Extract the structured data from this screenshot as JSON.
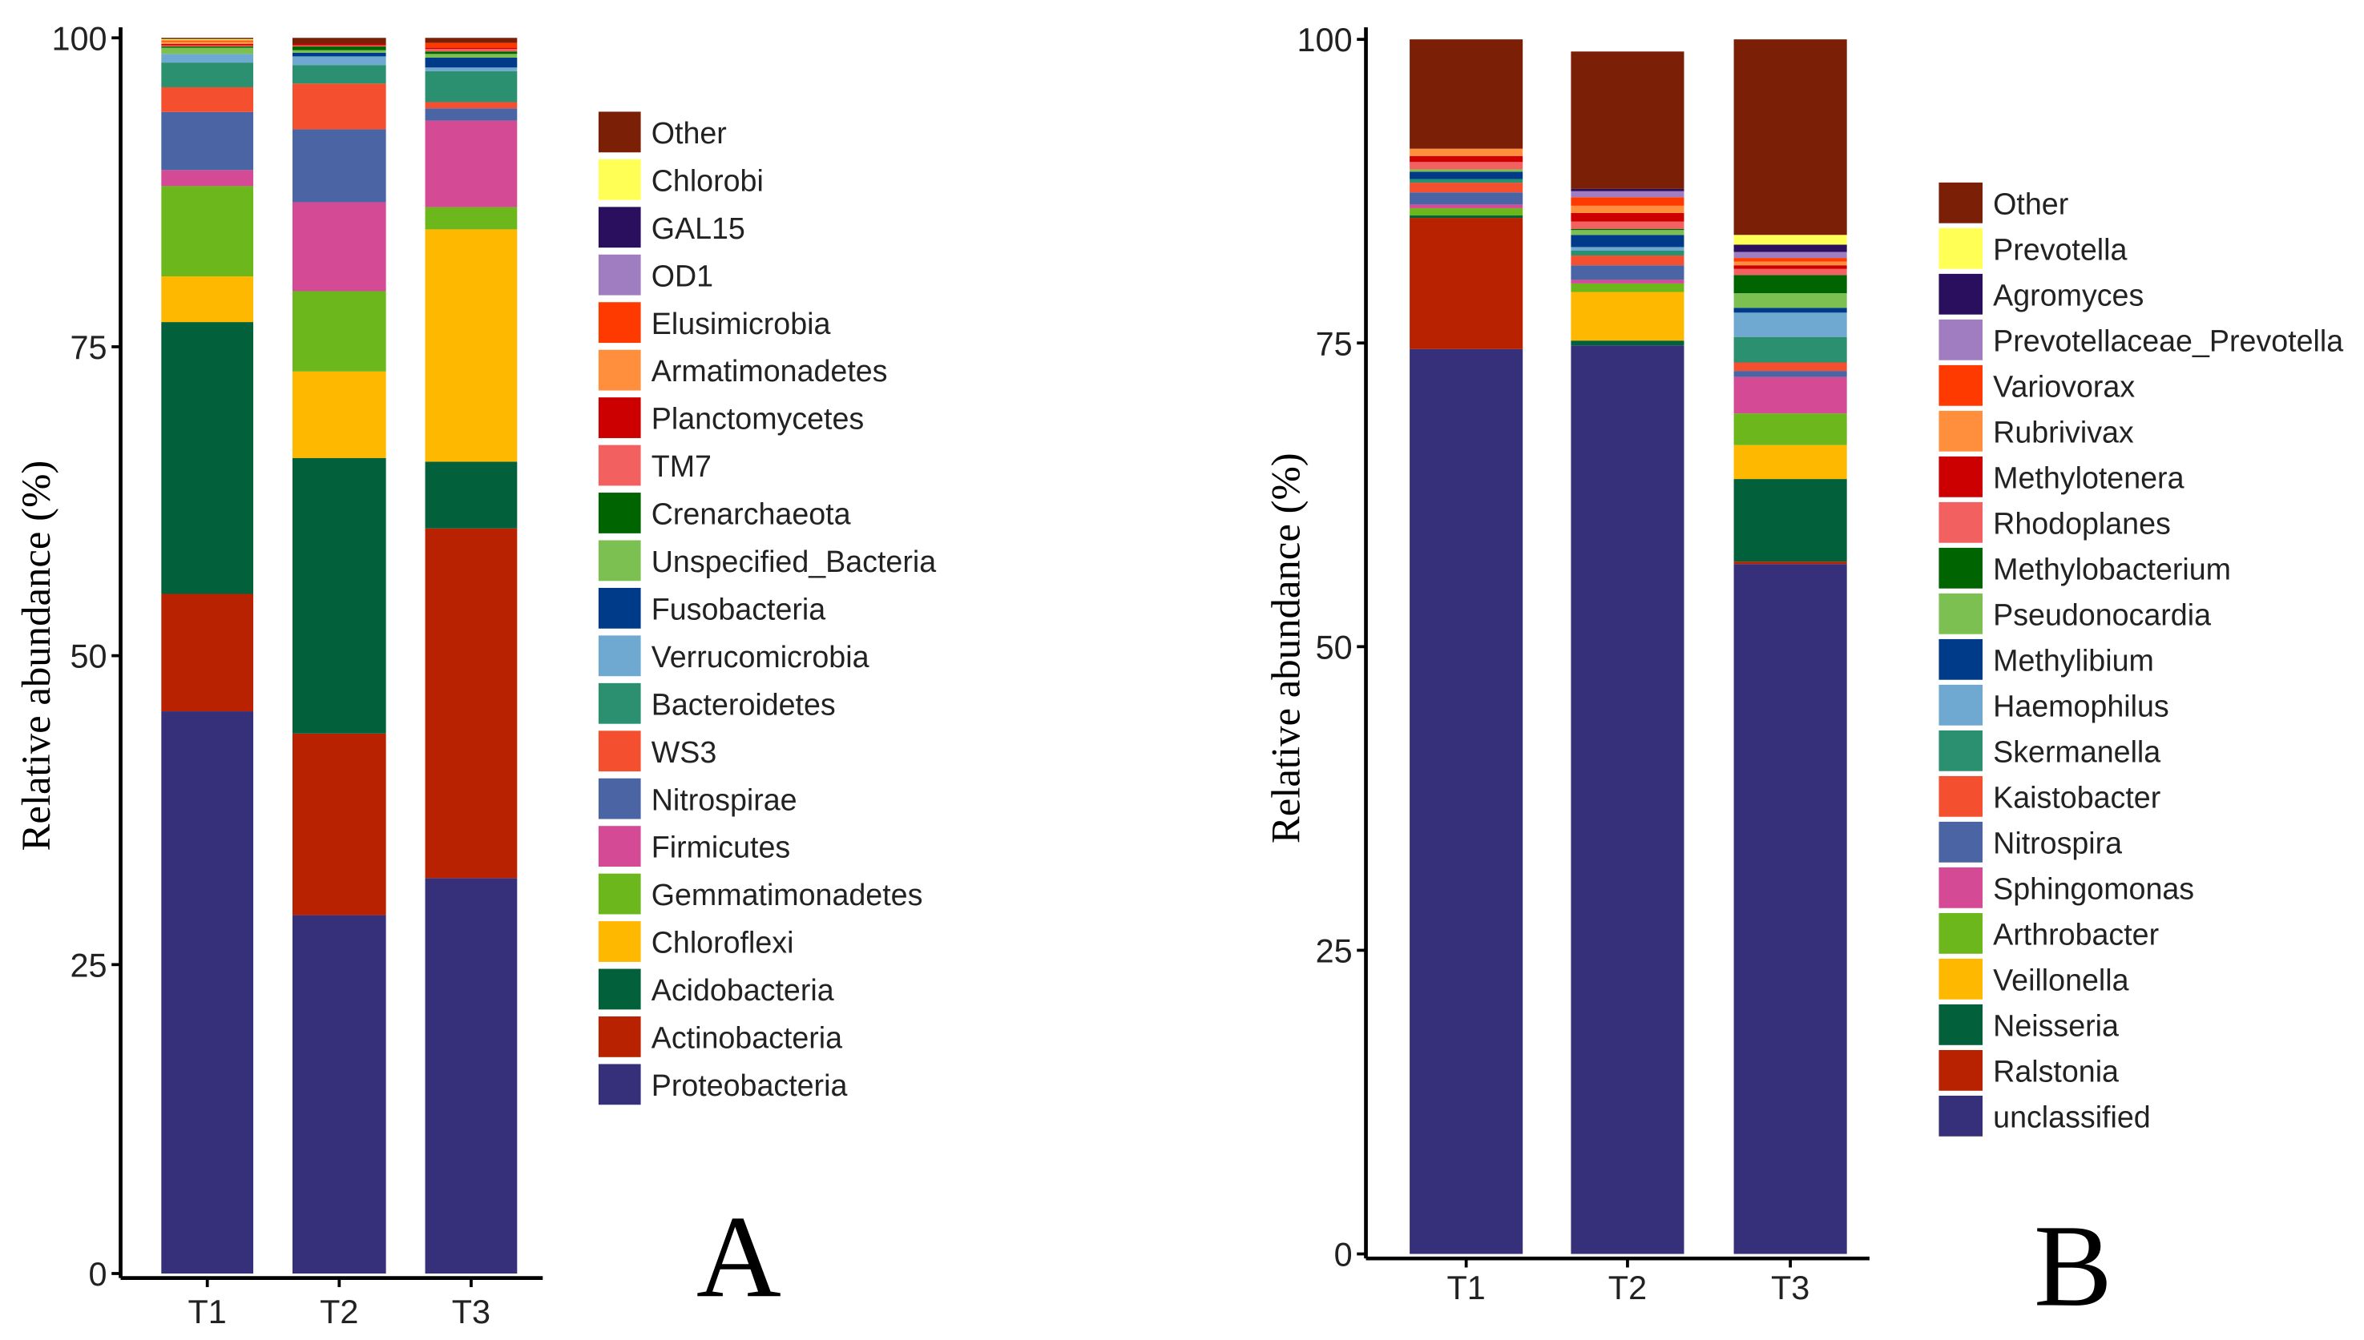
{
  "colors": [
    "#36307A",
    "#B82200",
    "#02603A",
    "#FFB800",
    "#6CB81C",
    "#D44A94",
    "#4A64A4",
    "#F45030",
    "#2A9070",
    "#6FA8D0",
    "#003B8A",
    "#7BC050",
    "#006400",
    "#F26060",
    "#CC0000",
    "#FF8F3C",
    "#FF3A00",
    "#A07CC0",
    "#2A0F5E",
    "#FFFF55",
    "#7B1F07"
  ],
  "chart_data": [
    {
      "type": "bar",
      "stacked": true,
      "panel_label": "A",
      "ylabel": "Relative abundance (%)",
      "ylim": [
        0,
        100
      ],
      "yticks": [
        "0",
        "25",
        "50",
        "75",
        "100"
      ],
      "categories": [
        "T1",
        "T2",
        "T3"
      ],
      "legend_placement": "right",
      "series": [
        {
          "name": "Proteobacteria",
          "values": [
            45.5,
            29,
            32
          ]
        },
        {
          "name": "Actinobacteria",
          "values": [
            9.5,
            14.7,
            28.3
          ]
        },
        {
          "name": "Acidobacteria",
          "values": [
            22,
            22.3,
            5.4
          ]
        },
        {
          "name": "Chloroflexi",
          "values": [
            3.7,
            7,
            18.8
          ]
        },
        {
          "name": "Gemmatimonadetes",
          "values": [
            7.3,
            6.5,
            1.8
          ]
        },
        {
          "name": "Firmicutes",
          "values": [
            1.3,
            7.2,
            7
          ]
        },
        {
          "name": "Nitrospirae",
          "values": [
            4.7,
            5.9,
            1
          ]
        },
        {
          "name": "WS3",
          "values": [
            2,
            3.7,
            0.5
          ]
        },
        {
          "name": "Bacteroidetes",
          "values": [
            2,
            1.5,
            2.5
          ]
        },
        {
          "name": "Verrucomicrobia",
          "values": [
            0.7,
            0.7,
            0.3
          ]
        },
        {
          "name": "Fusobacteria",
          "values": [
            0,
            0.3,
            0.8
          ]
        },
        {
          "name": "Unspecified_Bacteria",
          "values": [
            0.5,
            0.2,
            0.3
          ]
        },
        {
          "name": "Crenarchaeota",
          "values": [
            0.1,
            0.3,
            0.2
          ]
        },
        {
          "name": "TM7",
          "values": [
            0.1,
            0.1,
            0.2
          ]
        },
        {
          "name": "Planctomycetes",
          "values": [
            0.1,
            0.1,
            0.1
          ]
        },
        {
          "name": "Armatimonadetes",
          "values": [
            0.2,
            0,
            0
          ]
        },
        {
          "name": "Elusimicrobia",
          "values": [
            0.1,
            0,
            0.4
          ]
        },
        {
          "name": "OD1",
          "values": [
            0,
            0,
            0
          ]
        },
        {
          "name": "GAL15",
          "values": [
            0,
            0,
            0
          ]
        },
        {
          "name": "Chlorobi",
          "values": [
            0.1,
            0,
            0
          ]
        },
        {
          "name": "Other",
          "values": [
            0.1,
            0.5,
            0.4
          ]
        }
      ]
    },
    {
      "type": "bar",
      "stacked": true,
      "panel_label": "B",
      "ylabel": "Relative abundance (%)",
      "ylim": [
        0,
        100
      ],
      "yticks": [
        "0",
        "25",
        "50",
        "75",
        "100"
      ],
      "categories": [
        "T1",
        "T2",
        "T3"
      ],
      "legend_placement": "right",
      "series": [
        {
          "name": "unclassified",
          "values": [
            74.5,
            74.8,
            56.8
          ]
        },
        {
          "name": "Ralstonia",
          "values": [
            10.8,
            0,
            0.2
          ]
        },
        {
          "name": "Neisseria",
          "values": [
            0.2,
            0.4,
            6.8
          ]
        },
        {
          "name": "Veillonella",
          "values": [
            0,
            4,
            2.8
          ]
        },
        {
          "name": "Arthrobacter",
          "values": [
            0.6,
            0.7,
            2.6
          ]
        },
        {
          "name": "Sphingomonas",
          "values": [
            0.3,
            0.3,
            3
          ]
        },
        {
          "name": "Nitrospira",
          "values": [
            1,
            1.2,
            0.5
          ]
        },
        {
          "name": "Kaistobacter",
          "values": [
            0.8,
            0.8,
            0.7
          ]
        },
        {
          "name": "Skermanella",
          "values": [
            0.3,
            0.4,
            2.1
          ]
        },
        {
          "name": "Haemophilus",
          "values": [
            0,
            0.3,
            2
          ]
        },
        {
          "name": "Methylibium",
          "values": [
            0.6,
            1,
            0.4
          ]
        },
        {
          "name": "Pseudonocardia",
          "values": [
            0.2,
            0.4,
            1.2
          ]
        },
        {
          "name": "Methylobacterium",
          "values": [
            0,
            0.1,
            1.5
          ]
        },
        {
          "name": "Rhodoplanes",
          "values": [
            0.6,
            0.6,
            0.5
          ]
        },
        {
          "name": "Methylotenera",
          "values": [
            0.5,
            0.7,
            0.3
          ]
        },
        {
          "name": "Rubrivivax",
          "values": [
            0.6,
            0.6,
            0.3
          ]
        },
        {
          "name": "Variovorax",
          "values": [
            0,
            0.7,
            0.3
          ]
        },
        {
          "name": "Prevotellaceae_Prevotella",
          "values": [
            0,
            0.5,
            0.5
          ]
        },
        {
          "name": "Agromyces",
          "values": [
            0,
            0.2,
            0.6
          ]
        },
        {
          "name": "Prevotella",
          "values": [
            0,
            0,
            0.8
          ]
        },
        {
          "name": "Other",
          "values": [
            9,
            11.3,
            16.1
          ]
        }
      ]
    }
  ]
}
